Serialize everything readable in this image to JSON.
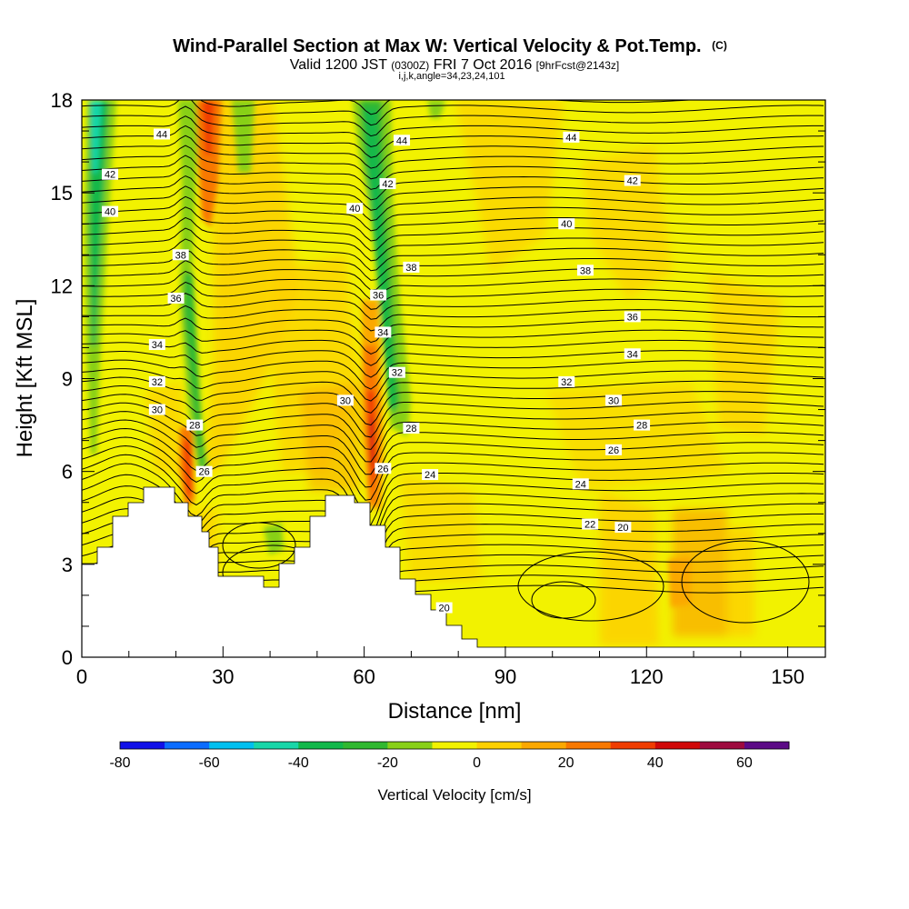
{
  "chart_data": {
    "type": "heatmap",
    "title": "Wind-Parallel Section at Max W: Vertical Velocity & Pot.Temp.",
    "title_mark": "(C)",
    "subtitle_parts": [
      "Valid 1200 JST",
      "(0300Z)",
      "FRI 7 Oct 2016",
      "[9hrFcst@2143z]"
    ],
    "subtitle2": "i,j,k,angle=34,23,24,101",
    "xlabel": "Distance [nm]",
    "ylabel": "Height [Kft MSL]",
    "xlim": [
      0,
      158
    ],
    "ylim": [
      0,
      18
    ],
    "x_ticks": [
      0,
      30,
      60,
      90,
      120,
      150
    ],
    "y_ticks": [
      0,
      3,
      6,
      9,
      12,
      15,
      18
    ],
    "colorbar": {
      "title": "Vertical Velocity [cm/s]",
      "ticks": [
        -80,
        -60,
        -40,
        -20,
        0,
        20,
        40,
        60
      ],
      "levels": [
        -80,
        -70,
        -60,
        -50,
        -40,
        -30,
        -20,
        -10,
        0,
        10,
        20,
        30,
        40,
        50,
        60,
        70
      ],
      "colors": [
        "#1010e8",
        "#0a6cff",
        "#00bff0",
        "#18d6a8",
        "#12b84a",
        "#30b830",
        "#88d018",
        "#f2f200",
        "#fdd000",
        "#fba800",
        "#f87800",
        "#f03c00",
        "#d00808",
        "#9e0a3e",
        "#5c0a86"
      ]
    },
    "theta_contour_labels": [
      {
        "x": 17,
        "y": 16.9,
        "label": "44"
      },
      {
        "x": 6,
        "y": 15.6,
        "label": "42"
      },
      {
        "x": 6,
        "y": 14.4,
        "label": "40"
      },
      {
        "x": 21,
        "y": 13.0,
        "label": "38"
      },
      {
        "x": 20,
        "y": 11.6,
        "label": "36"
      },
      {
        "x": 16,
        "y": 10.1,
        "label": "34"
      },
      {
        "x": 16,
        "y": 8.9,
        "label": "32"
      },
      {
        "x": 16,
        "y": 8.0,
        "label": "30"
      },
      {
        "x": 24,
        "y": 7.5,
        "label": "28"
      },
      {
        "x": 26,
        "y": 6.0,
        "label": "26"
      },
      {
        "x": 68,
        "y": 16.7,
        "label": "44"
      },
      {
        "x": 65,
        "y": 15.3,
        "label": "42"
      },
      {
        "x": 58,
        "y": 14.5,
        "label": "40"
      },
      {
        "x": 70,
        "y": 12.6,
        "label": "38"
      },
      {
        "x": 63,
        "y": 11.7,
        "label": "36"
      },
      {
        "x": 64,
        "y": 10.5,
        "label": "34"
      },
      {
        "x": 67,
        "y": 9.2,
        "label": "32"
      },
      {
        "x": 56,
        "y": 8.3,
        "label": "30"
      },
      {
        "x": 70,
        "y": 7.4,
        "label": "28"
      },
      {
        "x": 64,
        "y": 6.1,
        "label": "26"
      },
      {
        "x": 74,
        "y": 5.9,
        "label": "24"
      },
      {
        "x": 104,
        "y": 16.8,
        "label": "44"
      },
      {
        "x": 117,
        "y": 15.4,
        "label": "42"
      },
      {
        "x": 103,
        "y": 14.0,
        "label": "40"
      },
      {
        "x": 107,
        "y": 12.5,
        "label": "38"
      },
      {
        "x": 117,
        "y": 11.0,
        "label": "36"
      },
      {
        "x": 117,
        "y": 9.8,
        "label": "34"
      },
      {
        "x": 103,
        "y": 8.9,
        "label": "32"
      },
      {
        "x": 113,
        "y": 8.3,
        "label": "30"
      },
      {
        "x": 119,
        "y": 7.5,
        "label": "28"
      },
      {
        "x": 113,
        "y": 6.7,
        "label": "26"
      },
      {
        "x": 106,
        "y": 5.6,
        "label": "24"
      },
      {
        "x": 108,
        "y": 4.3,
        "label": "22"
      },
      {
        "x": 115,
        "y": 4.2,
        "label": "20"
      },
      {
        "x": 77,
        "y": 1.6,
        "label": "20"
      }
    ]
  }
}
